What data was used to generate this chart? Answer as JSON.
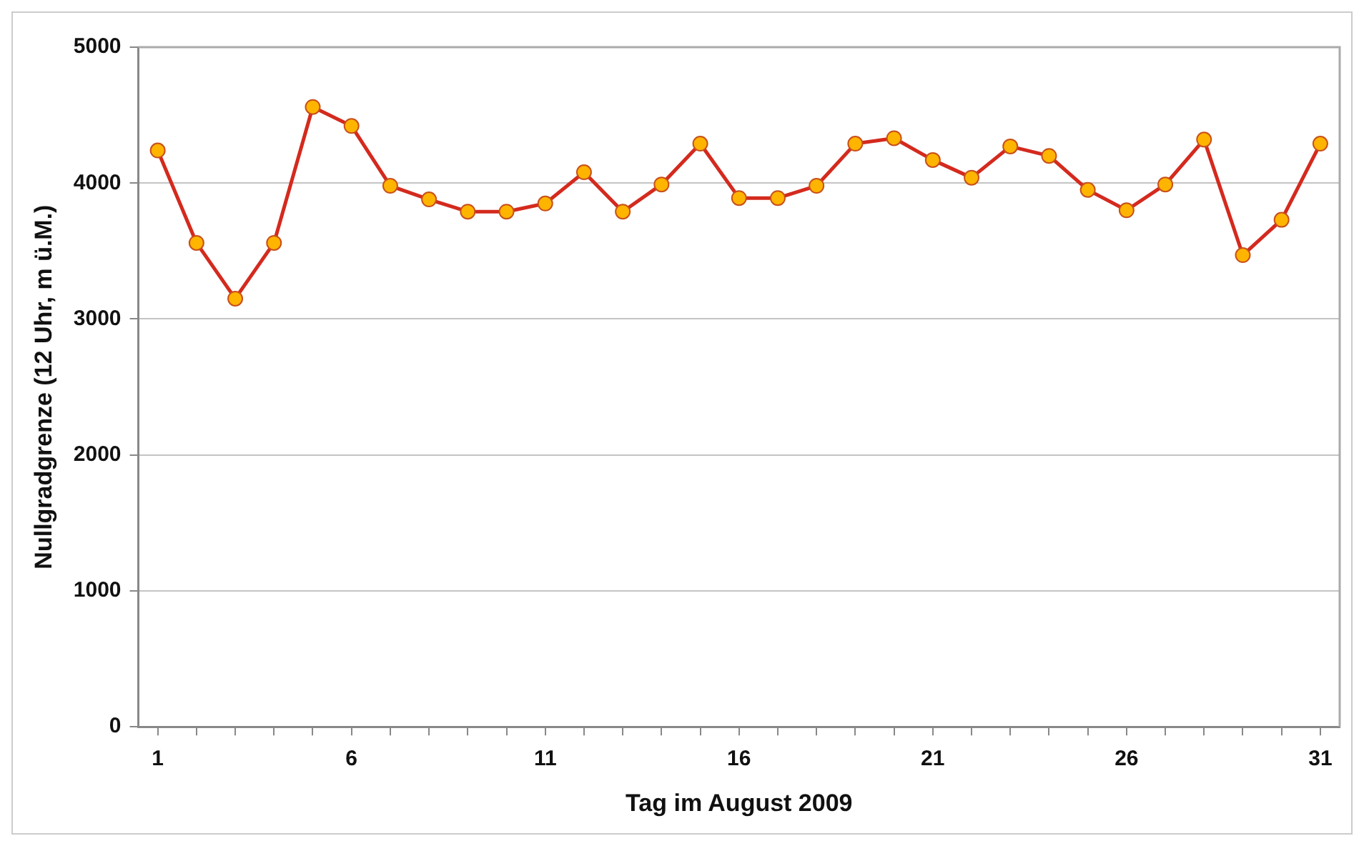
{
  "chart_data": {
    "type": "line",
    "xlabel": "Tag im August 2009",
    "ylabel": "Nullgradgrenze (12 Uhr, m ü.M.)",
    "x": [
      1,
      2,
      3,
      4,
      5,
      6,
      7,
      8,
      9,
      10,
      11,
      12,
      13,
      14,
      15,
      16,
      17,
      18,
      19,
      20,
      21,
      22,
      23,
      24,
      25,
      26,
      27,
      28,
      29,
      30,
      31
    ],
    "series": [
      {
        "color": "#d42a1e",
        "values": [
          4240,
          3560,
          3150,
          3560,
          4560,
          4420,
          3980,
          3880,
          3790,
          3790,
          3850,
          4080,
          3790,
          3990,
          4290,
          3890,
          3890,
          3980,
          4290,
          4330,
          4170,
          4040,
          4270,
          4200,
          3950,
          3800,
          3990,
          4320,
          3470,
          3730,
          4290
        ]
      }
    ],
    "xlim": [
      0.5,
      31.5
    ],
    "xticks": [
      1,
      {
        "value": 2,
        "label": null
      },
      {
        "value": 3,
        "label": null
      },
      {
        "value": 4,
        "label": null
      },
      {
        "value": 5,
        "label": null
      },
      6,
      {
        "value": 7,
        "label": null
      },
      {
        "value": 8,
        "label": null
      },
      {
        "value": 9,
        "label": null
      },
      {
        "value": 10,
        "label": null
      },
      11,
      {
        "value": 12,
        "label": null
      },
      {
        "value": 13,
        "label": null
      },
      {
        "value": 14,
        "label": null
      },
      {
        "value": 15,
        "label": null
      },
      16,
      {
        "value": 17,
        "label": null
      },
      {
        "value": 18,
        "label": null
      },
      {
        "value": 19,
        "label": null
      },
      {
        "value": 20,
        "label": null
      },
      21,
      {
        "value": 22,
        "label": null
      },
      {
        "value": 23,
        "label": null
      },
      {
        "value": 24,
        "label": null
      },
      {
        "value": 25,
        "label": null
      },
      26,
      {
        "value": 27,
        "label": null
      },
      {
        "value": 28,
        "label": null
      },
      {
        "value": 29,
        "label": null
      },
      {
        "value": 30,
        "label": null
      },
      31
    ],
    "ylim": [
      0,
      5000
    ],
    "yticks": [
      0,
      1000,
      2000,
      3000,
      4000,
      5000
    ],
    "grid": "y",
    "legend": false,
    "marker": "circle",
    "line_style": "solid"
  }
}
